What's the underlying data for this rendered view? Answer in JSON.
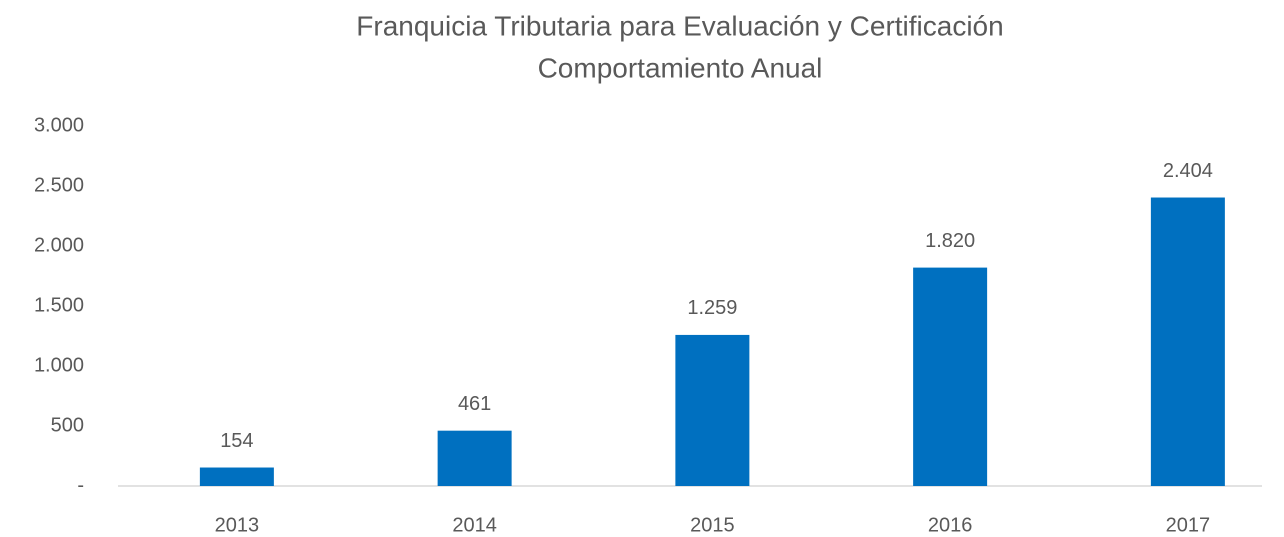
{
  "chart_data": {
    "type": "bar",
    "title": "Franquicia Tributaria para Evaluación y Certificación",
    "subtitle": "Comportamiento Anual",
    "categories": [
      "2013",
      "2014",
      "2015",
      "2016",
      "2017"
    ],
    "values": [
      154,
      461,
      1259,
      1820,
      2404
    ],
    "value_labels": [
      "154",
      "461",
      "1.259",
      "1.820",
      "2.404"
    ],
    "color": "#0070c0",
    "ylim": [
      0,
      3000
    ],
    "yticks": [
      {
        "value": 0,
        "label": "-"
      },
      500,
      {
        "value": 1000,
        "label": "1.000"
      },
      {
        "value": 1500,
        "label": "1.500"
      },
      {
        "value": 2000,
        "label": "2.000"
      },
      {
        "value": 2500,
        "label": "2.500"
      },
      {
        "value": 3000,
        "label": "3.000"
      }
    ],
    "grid": false
  }
}
